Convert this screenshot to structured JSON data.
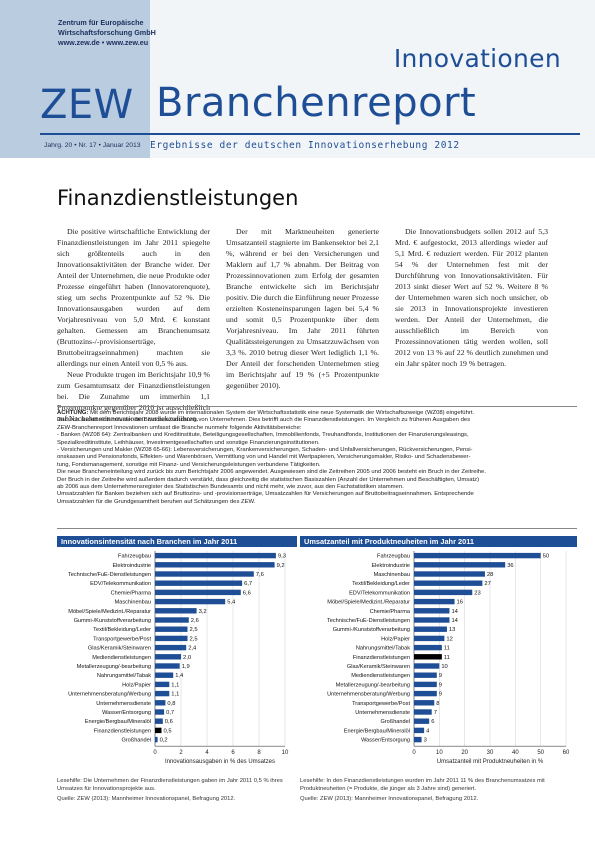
{
  "header": {
    "institute_line1": "Zentrum für Europäische",
    "institute_line2": "Wirtschaftsforschung GmbH",
    "institute_urls": "www.zew.de • www.zew.eu",
    "title_top": "Innovationen",
    "title_zew": "ZEW",
    "title_main": "Branchenreport",
    "issue": "Jahrg. 20 • Nr. 17 • Januar 2013",
    "subtitle": "Ergebnisse der deutschen Innovationserhebung 2012"
  },
  "section_title": "Finanzdienstleistungen",
  "columns": {
    "col1_p1": "Die positive wirtschaftliche Entwicklung der Finanzdienstleistungen im Jahr 2011 spiegelte sich größtenteils auch in den Innovationsaktivitäten der Branche wider. Der Anteil der Unternehmen, die neue Produkte oder Prozesse eingeführt haben (Innovatorenquote), stieg um sechs Prozentpunkte auf 52 %. Die Innovationsausgaben wurden auf dem Vorjahresniveau von 5,0 Mrd. € konstant gehalten. Gemessen am Branchenumsatz (Bruttozins-/-provisionserträge, Bruttobeitragseinnahmen) machten sie allerdings nur einen Anteil von 0,5 % aus.",
    "col1_p2": "Neue Produkte trugen im Berichtsjahr 10,9 % zum Gesamtumsatz der Finanzdienstleistungen bei. Die Zunahme um immerhin 1,1 Prozentpunkte gegenüber 2010 ist ausschließlich auf Nachahmerinnovationen zurückzuführen.",
    "col2_p1": "Der mit Marktneuheiten generierte Umsatzanteil stagnierte im Bankensektor bei 2,1 %, während er bei den Versicherungen und Maklern auf 1,7 % abnahm. Der Beitrag von Prozessinnovationen zum Erfolg der gesamten Branche entwickelte sich im Berichtsjahr positiv. Die durch die Einführung neuer Prozesse erzielten Kosteneinsparungen lagen bei 5,4 % und somit 0,5 Prozentpunkte über dem Vorjahresniveau. Im Jahr 2011 führten Qualitätssteigerungen zu Umsatzzuwächsen von 3,3 %. 2010 betrug dieser Wert lediglich 1,1 %. Der Anteil der forschenden Unternehmen stieg im Berichtsjahr auf 19 % (+5 Prozentpunkte gegenüber 2010).",
    "col3_p1": "Die Innovationsbudgets sollen 2012 auf 5,3 Mrd. € aufgestockt, 2013 allerdings wieder auf 5,1 Mrd. € reduziert werden. Für 2012 planten 54 % der Unternehmen fest mit der Durchführung von Innovationsaktivitäten. Für 2013 sinkt dieser Wert auf 52 %. Weitere 8 % der Unternehmen waren sich noch unsicher, ob sie 2013 in Innovationsprojekte investieren werden. Der Anteil der Unternehmen, die ausschließlich im Bereich von Prozessinnovationen tätig werden wollen, soll 2012 von 13 % auf 22 % deutlich zunehmen und ein Jahr später noch 19 % betragen."
  },
  "note": {
    "label": "ACHTUNG:",
    "lines": [
      "Mit dem Berichtsjahr 2008 wurde im internationalen System der Wirtschaftsstatistik eine neue Systematik der Wirtschaftszweige (WZ08) eingeführt.",
      "Dadurch ändert sich mitunter die Branchenzuordnung von Unternehmen. Dies betrifft auch die Finanzdienstleistungen. Im Vergleich zu früheren Ausgaben des",
      "ZEW-Branchenreport Innovationen umfasst die Branche nunmehr folgende Aktivitätsbereiche:",
      "- Banken (WZ08 64): Zentralbanken und Kreditinstitute, Beteiligungsgesellschaften, Immobilienfonds, Treuhandfonds, Institutionen der Finanzierungsleasings,",
      "  Spezialkreditinstitute, Leihhäuser, Investmentgesellschaften und sonstige Finanzierungsinstitutionen.",
      "- Versicherungen und Makler (WZ08 65-66): Lebensversicherungen, Krankenversicherungen, Schaden- und Unfallversicherungen, Rückversicherungen, Pensi-",
      "  onskassen und Pensionsfonds, Effekten- und Warenbörsen, Vermittlung von und Handel mit Wertpapieren, Versicherungsmakler, Risiko- und Schadensbewer-",
      "  tung, Fondsmanagement, sonstige mit Finanz- und Versicherungsleistungen verbundene Tätigkeiten.",
      "Die neue Brancheneinteilung wird zurück bis zum Berichtsjahr 2006 angewendet. Ausgewiesen sind die Zeitreihen 2005 und 2006 besteht ein Bruch in der Zeitreihe.",
      "Der Bruch in der Zeitreihe wird außerdem dadurch verstärkt, dass gleichzeitig die statistischen Basiszahlen (Anzahl der Unternehmen und Beschäftigten, Umsatz)",
      "ab 2006 aus dem Unternehmensregister des Statistischen Bundesamts und nicht mehr, wie zuvor, aus den Fachstatistiken stammen.",
      "Umsatzzahlen für Banken beziehen sich auf Bruttozins- und -provisionserträge, Umsatzzahlen für Versicherungen auf Bruttobeitragseinnahmen. Entsprechende",
      "Umsatzzahlen für die Grundgesamtheit beruhen auf Schätzungen des ZEW."
    ]
  },
  "chart_data": [
    {
      "type": "bar",
      "orientation": "horizontal",
      "title": "Innovationsintensität nach Branchen im Jahr 2011",
      "xlabel": "Innovationsausgaben in % des Umsatzes",
      "xlim": [
        0,
        10
      ],
      "xticks": [
        0,
        2,
        4,
        6,
        8,
        10
      ],
      "highlight": "Finanzdienstleistungen",
      "colors": {
        "bar": "#1e4e96",
        "highlight": "#000000"
      },
      "categories": [
        "Fahrzeugbau",
        "Elektroindustrie",
        "Technische/FuE-Dienstleistungen",
        "EDV/Telekommunikation",
        "Chemie/Pharma",
        "Maschinenbau",
        "Möbel/Spiele/Medizint./Reparatur",
        "Gummi-/Kunststoffverarbeitung",
        "Textil/Bekleidung/Leder",
        "Transportgewerbe/Post",
        "Glas/Keramik/Steinwaren",
        "Mediendienstleistungen",
        "Metallerzeugung/-bearbeitung",
        "Nahrungsmittel/Tabak",
        "Holz/Papier",
        "Unternehmensberatung/Werbung",
        "Unternehmensdienste",
        "Wasser/Entsorgung",
        "Energie/Bergbau/Mineralöl",
        "Finanzdienstleistungen",
        "Großhandel"
      ],
      "values": [
        9.3,
        9.2,
        7.6,
        6.7,
        6.6,
        5.4,
        3.2,
        2.6,
        2.5,
        2.5,
        2.4,
        2.0,
        1.9,
        1.4,
        1.1,
        1.1,
        0.8,
        0.7,
        0.6,
        0.5,
        0.2
      ],
      "value_labels": [
        "9,3",
        "9,2",
        "7,6",
        "6,7",
        "6,6",
        "5,4",
        "3,2",
        "2,6",
        "2,5",
        "2,5",
        "2,4",
        "2,0",
        "1,9",
        "1,4",
        "1,1",
        "1,1",
        "0,8",
        "0,7",
        "0,6",
        "0,5",
        "0,2"
      ]
    },
    {
      "type": "bar",
      "orientation": "horizontal",
      "title": "Umsatzanteil mit Produktneuheiten im Jahr 2011",
      "xlabel": "Umsatzanteil mit Produktneuheiten in %",
      "xlim": [
        0,
        60
      ],
      "xticks": [
        0,
        10,
        20,
        30,
        40,
        50,
        60
      ],
      "highlight": "Finanzdienstleistungen",
      "colors": {
        "bar": "#1e4e96",
        "highlight": "#000000"
      },
      "categories": [
        "Fahrzeugbau",
        "Elektroindustrie",
        "Maschinenbau",
        "Textil/Bekleidung/Leder",
        "EDV/Telekommunikation",
        "Möbel/Spiele/Medizint./Reparatur",
        "Chemie/Pharma",
        "Technische/FuE-Dienstleistungen",
        "Gummi-/Kunststoffverarbeitung",
        "Holz/Papier",
        "Nahrungsmittel/Tabak",
        "Finanzdienstleistungen",
        "Glas/Keramik/Steinwaren",
        "Mediendienstleistungen",
        "Metallerzeugung/-bearbeitung",
        "Unternehmensberatung/Werbung",
        "Transportgewerbe/Post",
        "Unternehmensdienste",
        "Großhandel",
        "Energie/Bergbau/Mineralöl",
        "Wasser/Entsorgung"
      ],
      "values": [
        50,
        36,
        28,
        27,
        23,
        16,
        14,
        14,
        13,
        12,
        11,
        11,
        10,
        9,
        9,
        9,
        8,
        7,
        6,
        4,
        3
      ],
      "value_labels": [
        "50",
        "36",
        "28",
        "27",
        "23",
        "16",
        "14",
        "14",
        "13",
        "12",
        "11",
        "11",
        "10",
        "9",
        "9",
        "9",
        "8",
        "7",
        "6",
        "4",
        "3"
      ]
    }
  ],
  "captions": {
    "left": "Lesehilfe: Die Unternehmen der Finanzdienstleistungen gaben im Jahr 2011 0,5 % ihres Umsatzes für Innovationsprojekte aus.",
    "right": "Lesehilfe: In den Finanzdienstleistungen wurden im Jahr 2011 11 % des Branchenumsatzes mit Produktneuheiten (= Produkte, die jünger als 3 Jahre sind) generiert.",
    "source_left": "Quelle: ZEW (2013): Mannheimer Innovationspanel, Befragung 2012.",
    "source_right": "Quelle: ZEW (2013): Mannheimer Innovationspanel, Befragung 2012."
  }
}
